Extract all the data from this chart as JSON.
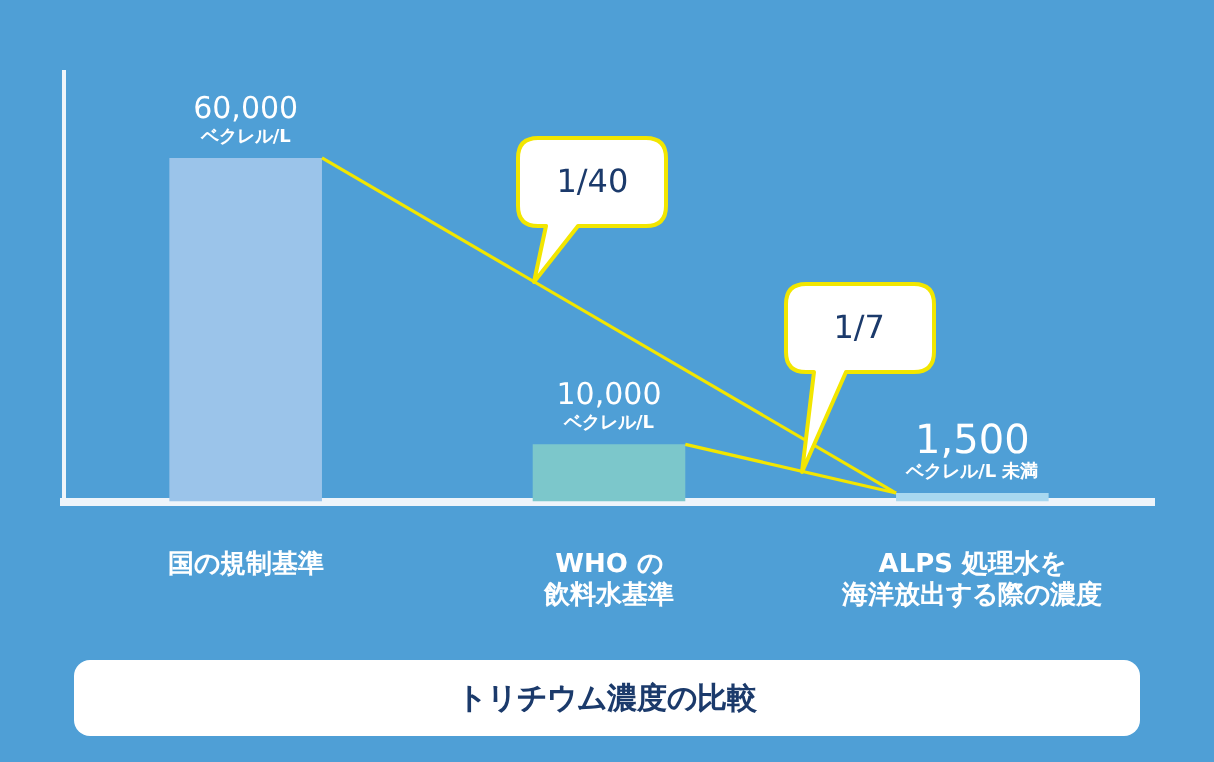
{
  "chart_data": {
    "type": "bar",
    "title": "トリチウム濃度の比較",
    "categories": [
      "国の規制基準",
      "WHO の飲料水基準",
      "ALPS 処理水を海洋放出する際の濃度"
    ],
    "values": [
      60000,
      10000,
      1500
    ],
    "colors": [
      "#9bc4ea",
      "#7cc7cb",
      "#a8d8f0"
    ],
    "value_labels": [
      "60,000",
      "10,000",
      "1,500"
    ],
    "ylim": [
      0,
      75000
    ],
    "tick_labels": "x",
    "grid": false,
    "annotations": [
      {
        "text": "ベクレル/L",
        "x": "国の規制基準",
        "y": 60000
      },
      {
        "text": "ベクレル/L",
        "x": "WHO の飲料水基準",
        "y": 10000
      },
      {
        "text": "ベクレル/L 未満",
        "x": "ALPS 処理水を海洋放出する際の濃度",
        "y": 1500
      },
      "1/40",
      "1/7"
    ]
  }
}
